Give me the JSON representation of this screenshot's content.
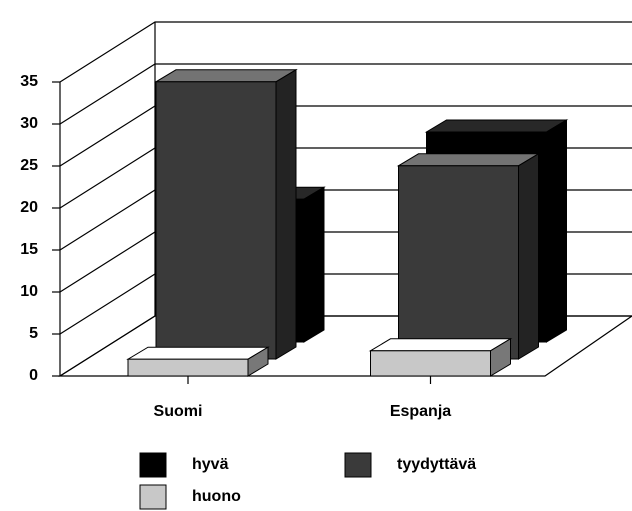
{
  "chart_data": {
    "type": "bar3d",
    "categories": [
      "Suomi",
      "Espanja"
    ],
    "series": [
      {
        "name": "hyvä",
        "color": "#000000",
        "values": [
          17,
          25
        ]
      },
      {
        "name": "tyydyttävä",
        "color": "#3a3a3a",
        "values": [
          33,
          23
        ]
      },
      {
        "name": "huono",
        "color": "#c8c8c8",
        "values": [
          2,
          3
        ]
      }
    ],
    "ylim": [
      0,
      35
    ],
    "yticks": [
      0,
      5,
      10,
      15,
      20,
      25,
      30,
      35
    ],
    "grid": true
  }
}
